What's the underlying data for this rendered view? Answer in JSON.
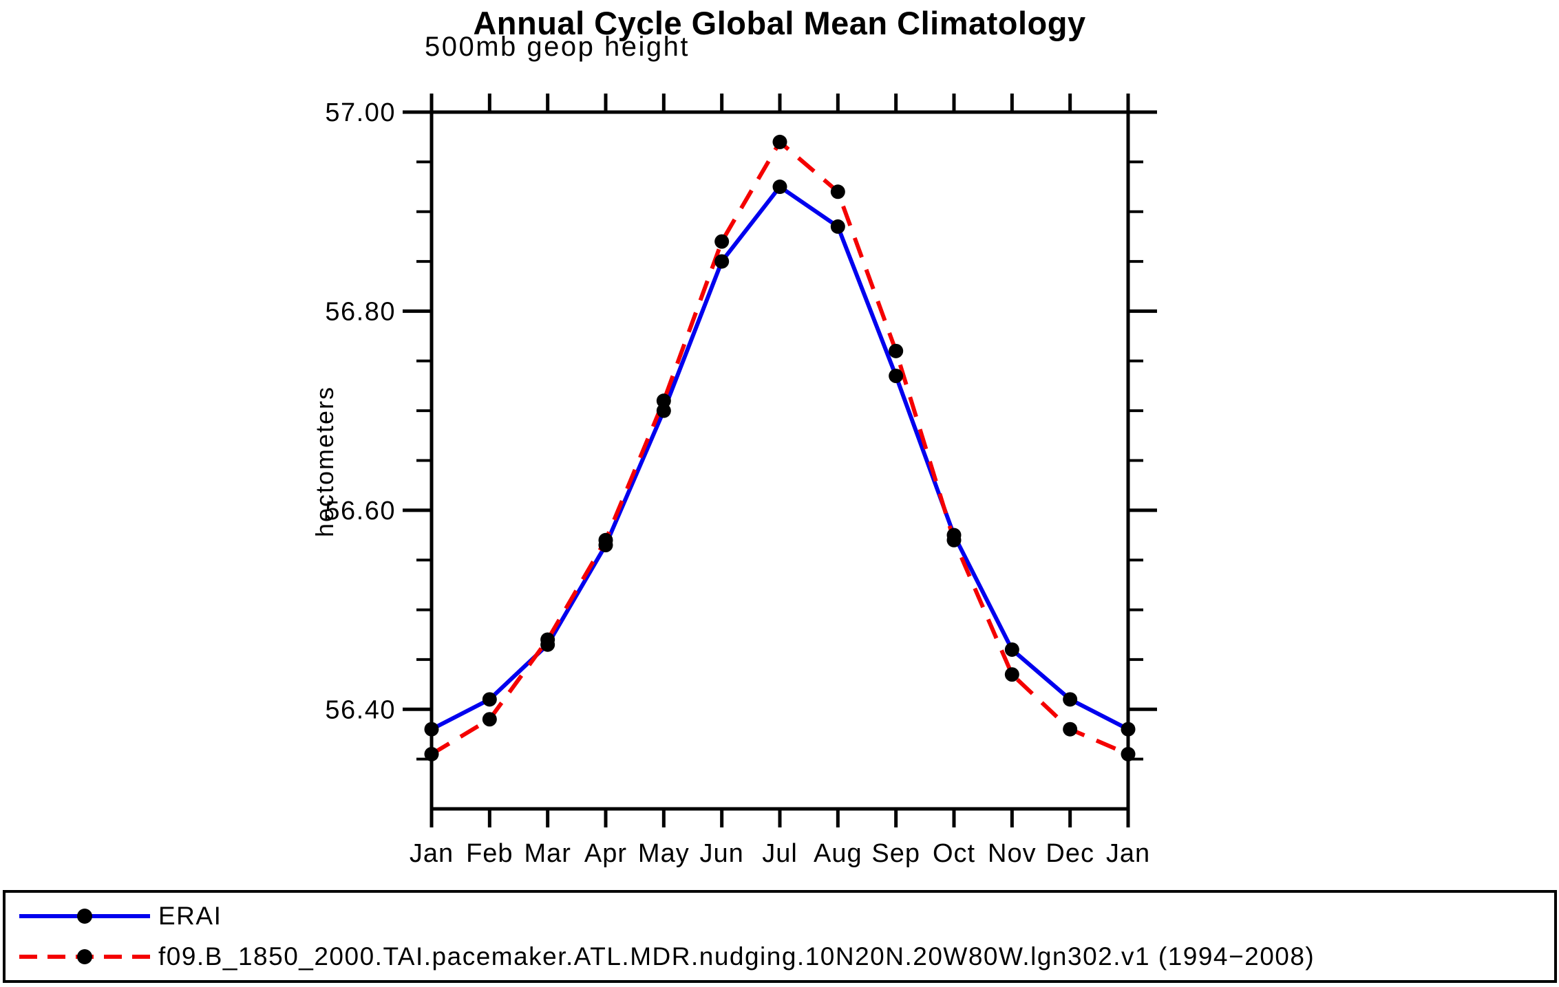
{
  "title": "Annual Cycle Global Mean Climatology",
  "subtitle": "500mb geop height",
  "y_axis_title": "hectometers",
  "legend": {
    "entries": [
      {
        "label": "ERAI"
      },
      {
        "label": "f09.B_1850_2000.TAI.pacemaker.ATL.MDR.nudging.10N20N.20W80W.lgn302.v1 (1994−2008)"
      }
    ]
  },
  "chart_data": {
    "type": "line",
    "title": "Annual Cycle Global Mean Climatology",
    "subtitle": "500mb geop height",
    "xlabel": "",
    "ylabel": "hectometers",
    "categories": [
      "Jan",
      "Feb",
      "Mar",
      "Apr",
      "May",
      "Jun",
      "Jul",
      "Aug",
      "Sep",
      "Oct",
      "Nov",
      "Dec",
      "Jan"
    ],
    "series": [
      {
        "name": "ERAI",
        "color": "#0000ee",
        "line_style": "solid",
        "marker": "filled-circle",
        "marker_color": "#000000",
        "values": [
          56.38,
          56.41,
          56.465,
          56.565,
          56.7,
          56.85,
          56.925,
          56.885,
          56.735,
          56.575,
          56.46,
          56.41,
          56.38
        ]
      },
      {
        "name": "f09.B_1850_2000.TAI.pacemaker.ATL.MDR.nudging.10N20N.20W80W.lgn302.v1 (1994−2008)",
        "color": "#f40000",
        "line_style": "dashed",
        "marker": "filled-circle",
        "marker_color": "#000000",
        "values": [
          56.355,
          56.39,
          56.47,
          56.57,
          56.71,
          56.87,
          56.97,
          56.92,
          56.76,
          56.57,
          56.435,
          56.38,
          56.355
        ]
      }
    ],
    "ylim": [
      56.3,
      57.0
    ],
    "yticks_major": [
      56.4,
      56.6,
      56.8,
      57.0
    ],
    "ytick_minor_step": 0.05,
    "ytick_label_format": "2-decimals",
    "grid": false,
    "legend_position": "bottom-box"
  }
}
